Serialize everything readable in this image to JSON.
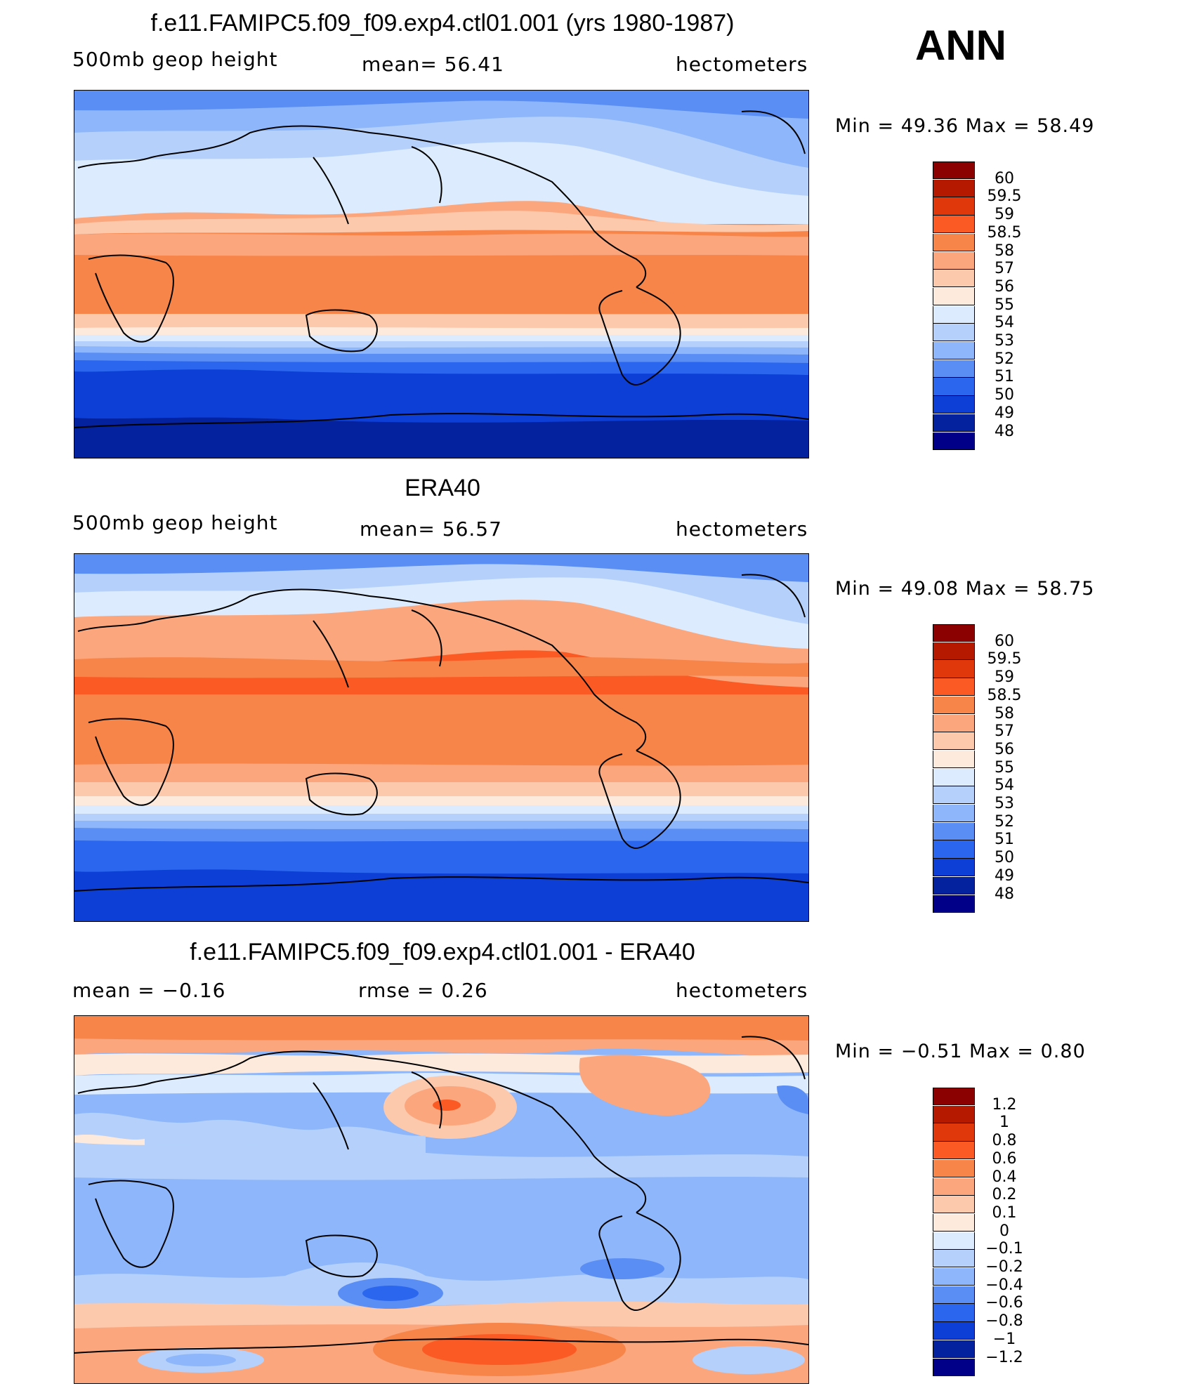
{
  "season": "ANN",
  "panels": [
    {
      "title": "f.e11.FAMIPC5.f09_f09.exp4.ctl01.001 (yrs 1980-1987)",
      "left_label": "500mb  geop  height",
      "mean_label": "mean=   56.41",
      "units": "hectometers",
      "minmax": "Min  =    49.36  Max  =    58.49",
      "scale": [
        "60",
        "59.5",
        "59",
        "58.5",
        "58",
        "57",
        "56",
        "55",
        "54",
        "53",
        "52",
        "51",
        "50",
        "49",
        "48"
      ],
      "colors": [
        "#8b0000",
        "#b51a00",
        "#e0380a",
        "#fc5a24",
        "#f78449",
        "#fba67c",
        "#fdc9ad",
        "#feeadc",
        "#dcebfd",
        "#b5d1fb",
        "#8eb6fa",
        "#5b8ef5",
        "#2b67ee",
        "#0d3fd7",
        "#04219e",
        "#000088"
      ]
    },
    {
      "title": "ERA40",
      "left_label": "500mb  geop  height",
      "mean_label": "mean=   56.57",
      "units": "hectometers",
      "minmax": "Min  =    49.08  Max  =    58.75",
      "scale": [
        "60",
        "59.5",
        "59",
        "58.5",
        "58",
        "57",
        "56",
        "55",
        "54",
        "53",
        "52",
        "51",
        "50",
        "49",
        "48"
      ],
      "colors": [
        "#8b0000",
        "#b51a00",
        "#e0380a",
        "#fc5a24",
        "#f78449",
        "#fba67c",
        "#fdc9ad",
        "#feeadc",
        "#dcebfd",
        "#b5d1fb",
        "#8eb6fa",
        "#5b8ef5",
        "#2b67ee",
        "#0d3fd7",
        "#04219e",
        "#000088"
      ]
    },
    {
      "title": "f.e11.FAMIPC5.f09_f09.exp4.ctl01.001 - ERA40",
      "left_label": "mean  =     −0.16",
      "mean_label": "rmse  =      0.26",
      "units": "hectometers",
      "minmax": "Min  =    −0.51  Max  =      0.80",
      "scale": [
        "1.2",
        "1",
        "0.8",
        "0.6",
        "0.4",
        "0.2",
        "0.1",
        "0",
        "−0.1",
        "−0.2",
        "−0.4",
        "−0.6",
        "−0.8",
        "−1",
        "−1.2"
      ],
      "colors": [
        "#8b0000",
        "#b51a00",
        "#e0380a",
        "#fc5a24",
        "#f78449",
        "#fba67c",
        "#fdc9ad",
        "#feeadc",
        "#dcebfd",
        "#b5d1fb",
        "#8eb6fa",
        "#5b8ef5",
        "#2b67ee",
        "#0d3fd7",
        "#04219e",
        "#000088"
      ]
    }
  ]
}
